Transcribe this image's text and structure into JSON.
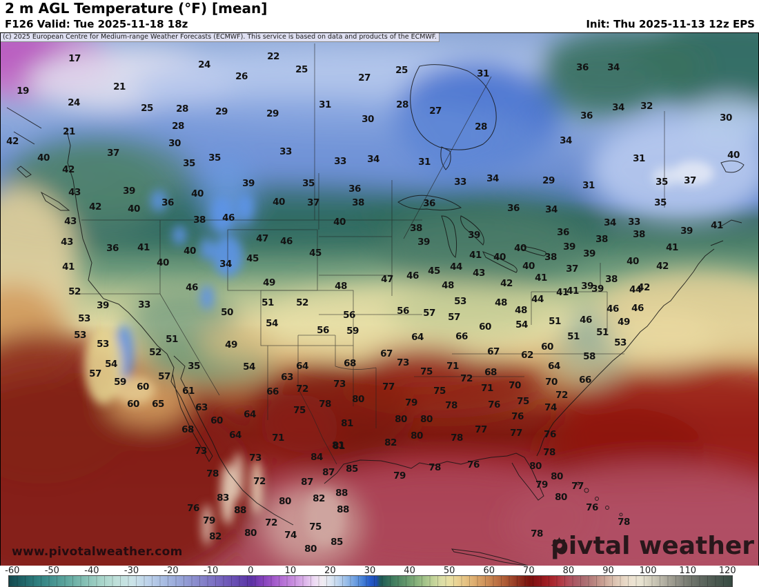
{
  "header": {
    "title": "2 m AGL Temperature (°F) [mean]",
    "valid": "F126 Valid: Tue 2025-11-18 18z",
    "init": "Init: Thu 2025-11-13 12z EPS"
  },
  "copyright": "(c) 2025 European Centre for Medium-range Weather Forecasts (ECMWF). This service is based on data and products of the ECMWF.",
  "watermark": "www.pivotalweather.com",
  "logo": {
    "prefix": "piv",
    "suffix": "tal weather"
  },
  "colorbar": {
    "range": [
      -61,
      121
    ],
    "ticks": [
      -60,
      -50,
      -40,
      -30,
      -20,
      -10,
      0,
      10,
      20,
      30,
      40,
      50,
      60,
      70,
      80,
      90,
      100,
      110,
      120
    ],
    "stops": [
      [
        -61,
        "#14494e"
      ],
      [
        -58,
        "#1d6064"
      ],
      [
        -54,
        "#2e7e7e"
      ],
      [
        -50,
        "#459390"
      ],
      [
        -46,
        "#62a9a0"
      ],
      [
        -42,
        "#84bfb4"
      ],
      [
        -38,
        "#a5d3c8"
      ],
      [
        -34,
        "#bfe0da"
      ],
      [
        -30,
        "#cbe4e8"
      ],
      [
        -26,
        "#bdd2ea"
      ],
      [
        -22,
        "#a8bce2"
      ],
      [
        -18,
        "#97a5d8"
      ],
      [
        -14,
        "#8a8ccd"
      ],
      [
        -10,
        "#7e74c4"
      ],
      [
        -6,
        "#6f58b8"
      ],
      [
        -2,
        "#6040ac"
      ],
      [
        0,
        "#5b32a4"
      ],
      [
        2,
        "#7a3cb6"
      ],
      [
        5,
        "#9b52c6"
      ],
      [
        8,
        "#b671d6"
      ],
      [
        11,
        "#cb92e0"
      ],
      [
        14,
        "#e0bcec"
      ],
      [
        16,
        "#eedcf4"
      ],
      [
        18,
        "#f1ecf2"
      ],
      [
        20,
        "#dce6f2"
      ],
      [
        22,
        "#bdd4ee"
      ],
      [
        24,
        "#97bce8"
      ],
      [
        26,
        "#6fa0e0"
      ],
      [
        28,
        "#4580d6"
      ],
      [
        30,
        "#2359c8"
      ],
      [
        31.5,
        "#1e4db0"
      ],
      [
        32.5,
        "#1e5a58"
      ],
      [
        34,
        "#2d6a58"
      ],
      [
        36,
        "#437f60"
      ],
      [
        38,
        "#598f68"
      ],
      [
        40,
        "#71a272"
      ],
      [
        42,
        "#8cb57e"
      ],
      [
        44,
        "#a8c68c"
      ],
      [
        46,
        "#c4d49a"
      ],
      [
        48,
        "#dcdea6"
      ],
      [
        50,
        "#e9dfa2"
      ],
      [
        52,
        "#ead192"
      ],
      [
        54,
        "#e5c182"
      ],
      [
        56,
        "#deae70"
      ],
      [
        58,
        "#d39a60"
      ],
      [
        60,
        "#c88550"
      ],
      [
        62,
        "#bb6f42"
      ],
      [
        64,
        "#ac5934"
      ],
      [
        66,
        "#9b4128"
      ],
      [
        68,
        "#89281a"
      ],
      [
        70,
        "#7b120d"
      ],
      [
        72,
        "#8a1317"
      ],
      [
        74,
        "#9c1c21"
      ],
      [
        76,
        "#aa272f"
      ],
      [
        78,
        "#b23a45"
      ],
      [
        80,
        "#b04e5c"
      ],
      [
        82,
        "#aa5d67"
      ],
      [
        84,
        "#ac6e72"
      ],
      [
        86,
        "#b8827e"
      ],
      [
        88,
        "#c69a8e"
      ],
      [
        90,
        "#d3b2a2"
      ],
      [
        92,
        "#dfc8b6"
      ],
      [
        94,
        "#e8d8c6"
      ],
      [
        96,
        "#ede3d2"
      ],
      [
        98,
        "#e8e3d1"
      ],
      [
        100,
        "#d8d3c1"
      ],
      [
        102,
        "#c5c1b1"
      ],
      [
        104,
        "#b1aea1"
      ],
      [
        106,
        "#9d9b8f"
      ],
      [
        108,
        "#898980"
      ],
      [
        110,
        "#767a70"
      ],
      [
        113,
        "#616961"
      ],
      [
        116,
        "#4f5c53"
      ],
      [
        121,
        "#374b42"
      ]
    ]
  },
  "map": {
    "units": "°F",
    "labels": [
      [
        17,
        107,
        84
      ],
      [
        24,
        295,
        93
      ],
      [
        19,
        32,
        131
      ],
      [
        26,
        349,
        110
      ],
      [
        24,
        106,
        148
      ],
      [
        21,
        172,
        125
      ],
      [
        21,
        99,
        190
      ],
      [
        25,
        212,
        156
      ],
      [
        28,
        263,
        157
      ],
      [
        29,
        320,
        161
      ],
      [
        28,
        257,
        182
      ],
      [
        30,
        252,
        207
      ],
      [
        37,
        163,
        221
      ],
      [
        35,
        310,
        228
      ],
      [
        35,
        273,
        236
      ],
      [
        42,
        17,
        204
      ],
      [
        40,
        62,
        228
      ],
      [
        42,
        98,
        245
      ],
      [
        22,
        395,
        81
      ],
      [
        25,
        436,
        100
      ],
      [
        25,
        581,
        101
      ],
      [
        27,
        527,
        112
      ],
      [
        31,
        699,
        106
      ],
      [
        31,
        470,
        151
      ],
      [
        29,
        394,
        164
      ],
      [
        28,
        582,
        151
      ],
      [
        30,
        532,
        172
      ],
      [
        27,
        630,
        160
      ],
      [
        28,
        696,
        183
      ],
      [
        33,
        413,
        219
      ],
      [
        33,
        492,
        233
      ],
      [
        34,
        540,
        230
      ],
      [
        31,
        614,
        234
      ],
      [
        36,
        843,
        97
      ],
      [
        34,
        888,
        97
      ],
      [
        34,
        895,
        155
      ],
      [
        32,
        936,
        153
      ],
      [
        36,
        849,
        167
      ],
      [
        30,
        1051,
        170
      ],
      [
        34,
        819,
        203
      ],
      [
        31,
        925,
        229
      ],
      [
        40,
        1062,
        224
      ],
      [
        39,
        359,
        265
      ],
      [
        35,
        446,
        265
      ],
      [
        36,
        513,
        273
      ],
      [
        43,
        107,
        278
      ],
      [
        39,
        186,
        276
      ],
      [
        40,
        285,
        280
      ],
      [
        42,
        137,
        299
      ],
      [
        36,
        242,
        293
      ],
      [
        40,
        193,
        302
      ],
      [
        40,
        403,
        292
      ],
      [
        37,
        453,
        293
      ],
      [
        38,
        518,
        293
      ],
      [
        43,
        101,
        320
      ],
      [
        38,
        288,
        318
      ],
      [
        46,
        330,
        315
      ],
      [
        40,
        491,
        321
      ],
      [
        43,
        96,
        350
      ],
      [
        36,
        162,
        359
      ],
      [
        41,
        207,
        358
      ],
      [
        40,
        274,
        363
      ],
      [
        47,
        379,
        345
      ],
      [
        46,
        414,
        349
      ],
      [
        45,
        456,
        366
      ],
      [
        45,
        365,
        374
      ],
      [
        34,
        326,
        382
      ],
      [
        41,
        98,
        386
      ],
      [
        40,
        235,
        380
      ],
      [
        49,
        389,
        409
      ],
      [
        48,
        493,
        414
      ],
      [
        52,
        107,
        422
      ],
      [
        46,
        277,
        416
      ],
      [
        51,
        387,
        438
      ],
      [
        52,
        437,
        438
      ],
      [
        39,
        148,
        442
      ],
      [
        33,
        208,
        441
      ],
      [
        34,
        713,
        258
      ],
      [
        33,
        666,
        263
      ],
      [
        29,
        794,
        261
      ],
      [
        31,
        852,
        268
      ],
      [
        35,
        958,
        263
      ],
      [
        37,
        999,
        261
      ],
      [
        36,
        621,
        294
      ],
      [
        36,
        743,
        301
      ],
      [
        34,
        798,
        303
      ],
      [
        35,
        956,
        293
      ],
      [
        33,
        918,
        321
      ],
      [
        34,
        883,
        322
      ],
      [
        38,
        602,
        330
      ],
      [
        36,
        815,
        336
      ],
      [
        39,
        686,
        340
      ],
      [
        38,
        871,
        346
      ],
      [
        38,
        925,
        339
      ],
      [
        39,
        994,
        334
      ],
      [
        41,
        1038,
        326
      ],
      [
        39,
        613,
        350
      ],
      [
        40,
        753,
        359
      ],
      [
        39,
        824,
        357
      ],
      [
        39,
        853,
        367
      ],
      [
        41,
        973,
        358
      ],
      [
        41,
        688,
        369
      ],
      [
        40,
        723,
        372
      ],
      [
        38,
        797,
        372
      ],
      [
        40,
        916,
        378
      ],
      [
        42,
        959,
        385
      ],
      [
        40,
        765,
        385
      ],
      [
        41,
        783,
        402
      ],
      [
        37,
        828,
        389
      ],
      [
        43,
        693,
        395
      ],
      [
        44,
        660,
        386
      ],
      [
        45,
        628,
        392
      ],
      [
        46,
        597,
        399
      ],
      [
        47,
        560,
        404
      ],
      [
        42,
        733,
        410
      ],
      [
        48,
        648,
        413
      ],
      [
        38,
        885,
        404
      ],
      [
        39,
        850,
        414
      ],
      [
        41,
        814,
        423
      ],
      [
        42,
        932,
        416
      ],
      [
        44,
        920,
        419
      ],
      [
        39,
        865,
        418
      ],
      [
        41,
        829,
        421
      ],
      [
        44,
        778,
        433
      ],
      [
        53,
        666,
        436
      ],
      [
        48,
        725,
        438
      ],
      [
        46,
        887,
        447
      ],
      [
        46,
        923,
        446
      ],
      [
        56,
        583,
        450
      ],
      [
        57,
        621,
        453
      ],
      [
        57,
        657,
        459
      ],
      [
        48,
        754,
        449
      ],
      [
        60,
        702,
        473
      ],
      [
        54,
        755,
        470
      ],
      [
        51,
        803,
        465
      ],
      [
        46,
        848,
        463
      ],
      [
        49,
        903,
        466
      ],
      [
        64,
        604,
        488
      ],
      [
        66,
        668,
        487
      ],
      [
        51,
        830,
        487
      ],
      [
        51,
        872,
        481
      ],
      [
        53,
        898,
        496
      ],
      [
        67,
        559,
        512
      ],
      [
        67,
        714,
        509
      ],
      [
        62,
        763,
        514
      ],
      [
        60,
        792,
        502
      ],
      [
        58,
        853,
        516
      ],
      [
        50,
        328,
        452
      ],
      [
        56,
        505,
        456
      ],
      [
        54,
        393,
        468
      ],
      [
        56,
        467,
        478
      ],
      [
        59,
        510,
        479
      ],
      [
        53,
        121,
        461
      ],
      [
        53,
        115,
        485
      ],
      [
        53,
        148,
        498
      ],
      [
        51,
        248,
        491
      ],
      [
        49,
        334,
        499
      ],
      [
        52,
        224,
        510
      ],
      [
        54,
        160,
        527
      ],
      [
        35,
        280,
        530
      ],
      [
        54,
        360,
        531
      ],
      [
        64,
        437,
        530
      ],
      [
        68,
        506,
        526
      ],
      [
        57,
        137,
        541
      ],
      [
        63,
        415,
        546
      ],
      [
        57,
        237,
        545
      ],
      [
        59,
        173,
        553
      ],
      [
        60,
        206,
        560
      ],
      [
        61,
        272,
        566
      ],
      [
        72,
        437,
        563
      ],
      [
        73,
        491,
        556
      ],
      [
        66,
        394,
        567
      ],
      [
        78,
        470,
        585
      ],
      [
        80,
        518,
        578
      ],
      [
        60,
        192,
        585
      ],
      [
        65,
        228,
        585
      ],
      [
        63,
        291,
        590
      ],
      [
        75,
        433,
        594
      ],
      [
        64,
        361,
        600
      ],
      [
        60,
        313,
        609
      ],
      [
        81,
        502,
        613
      ],
      [
        68,
        271,
        622
      ],
      [
        64,
        340,
        630
      ],
      [
        71,
        402,
        634
      ],
      [
        81,
        489,
        645
      ],
      [
        73,
        583,
        525
      ],
      [
        71,
        655,
        530
      ],
      [
        64,
        802,
        530
      ],
      [
        75,
        617,
        538
      ],
      [
        68,
        710,
        539
      ],
      [
        72,
        675,
        548
      ],
      [
        70,
        798,
        553
      ],
      [
        66,
        847,
        550
      ],
      [
        77,
        562,
        560
      ],
      [
        71,
        705,
        562
      ],
      [
        70,
        745,
        558
      ],
      [
        75,
        636,
        566
      ],
      [
        72,
        813,
        572
      ],
      [
        79,
        595,
        583
      ],
      [
        78,
        653,
        587
      ],
      [
        76,
        715,
        586
      ],
      [
        75,
        757,
        581
      ],
      [
        74,
        797,
        590
      ],
      [
        80,
        580,
        607
      ],
      [
        80,
        617,
        607
      ],
      [
        76,
        749,
        603
      ],
      [
        80,
        603,
        631
      ],
      [
        77,
        696,
        622
      ],
      [
        78,
        661,
        634
      ],
      [
        77,
        747,
        627
      ],
      [
        76,
        796,
        629
      ],
      [
        82,
        565,
        641
      ],
      [
        73,
        290,
        653
      ],
      [
        81,
        490,
        646
      ],
      [
        84,
        458,
        662
      ],
      [
        73,
        369,
        663
      ],
      [
        78,
        307,
        686
      ],
      [
        87,
        475,
        684
      ],
      [
        85,
        509,
        679
      ],
      [
        72,
        375,
        697
      ],
      [
        87,
        444,
        698
      ],
      [
        88,
        494,
        714
      ],
      [
        83,
        322,
        721
      ],
      [
        80,
        412,
        726
      ],
      [
        82,
        461,
        722
      ],
      [
        88,
        496,
        738
      ],
      [
        76,
        279,
        736
      ],
      [
        88,
        347,
        739
      ],
      [
        79,
        302,
        754
      ],
      [
        72,
        392,
        757
      ],
      [
        75,
        456,
        763
      ],
      [
        80,
        362,
        772
      ],
      [
        74,
        420,
        775
      ],
      [
        82,
        311,
        777
      ],
      [
        85,
        487,
        785
      ],
      [
        80,
        449,
        795
      ],
      [
        78,
        795,
        655
      ],
      [
        78,
        629,
        677
      ],
      [
        76,
        685,
        673
      ],
      [
        79,
        578,
        689
      ],
      [
        80,
        775,
        675
      ],
      [
        80,
        806,
        690
      ],
      [
        79,
        784,
        702
      ],
      [
        77,
        836,
        704
      ],
      [
        80,
        812,
        720
      ],
      [
        76,
        857,
        735
      ],
      [
        78,
        903,
        756
      ],
      [
        78,
        777,
        773
      ]
    ]
  }
}
